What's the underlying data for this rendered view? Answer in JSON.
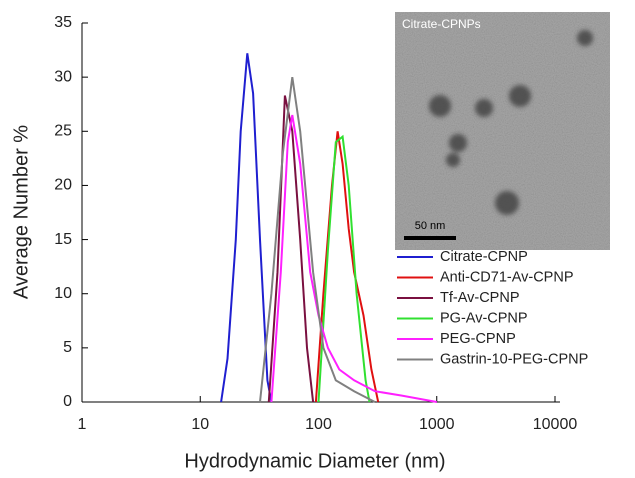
{
  "chart_data": {
    "type": "line",
    "x_label": "Hydrodynamic Diameter (nm)",
    "y_label": "Average Number %",
    "xscale": "log",
    "xlim": [
      1,
      10000
    ],
    "xticks": [
      1,
      10,
      100,
      1000,
      10000
    ],
    "ylim": [
      0,
      35
    ],
    "yticks": [
      0,
      5,
      10,
      15,
      20,
      25,
      30,
      35
    ],
    "legend": "center right",
    "inset_label": "Citrate-CPNPs",
    "scale_bar_label": "50 nm",
    "series": [
      {
        "name": "Citrate-CPNP",
        "color": "#1f1fd0",
        "x": [
          15,
          17,
          20,
          22,
          25,
          28,
          32,
          37,
          40
        ],
        "values": [
          0,
          4,
          15,
          25,
          32.2,
          28.5,
          15,
          2,
          0
        ]
      },
      {
        "name": "Anti-CD71-Av-CPNP",
        "color": "#e01010",
        "x": [
          95,
          110,
          130,
          145,
          160,
          180,
          200,
          240,
          280,
          320
        ],
        "values": [
          0,
          10,
          20,
          25,
          22,
          16,
          12,
          8,
          3,
          0
        ]
      },
      {
        "name": "Tf-Av-CPNP",
        "color": "#7a1040",
        "x": [
          38,
          45,
          52,
          60,
          70,
          80,
          90
        ],
        "values": [
          0,
          12,
          28.3,
          25,
          15,
          5,
          0
        ]
      },
      {
        "name": "PG-Av-CPNP",
        "color": "#30e030",
        "x": [
          100,
          120,
          140,
          160,
          180,
          210,
          250,
          270
        ],
        "values": [
          0,
          14,
          24,
          24.5,
          20,
          10,
          2,
          0
        ]
      },
      {
        "name": "PEG-CPNP",
        "color": "#ff20ff",
        "x": [
          40,
          48,
          55,
          60,
          70,
          85,
          100,
          120,
          150,
          200,
          300,
          500,
          1000
        ],
        "values": [
          0,
          12,
          24,
          26.5,
          22,
          12,
          8,
          5,
          3,
          2,
          1,
          0.6,
          0
        ]
      },
      {
        "name": "Gastrin-10-PEG-CPNP",
        "color": "#808080",
        "x": [
          32,
          40,
          50,
          60,
          70,
          90,
          110,
          140,
          200,
          300
        ],
        "values": [
          0,
          10,
          23,
          30,
          25,
          12,
          5,
          2,
          1,
          0
        ]
      }
    ]
  }
}
